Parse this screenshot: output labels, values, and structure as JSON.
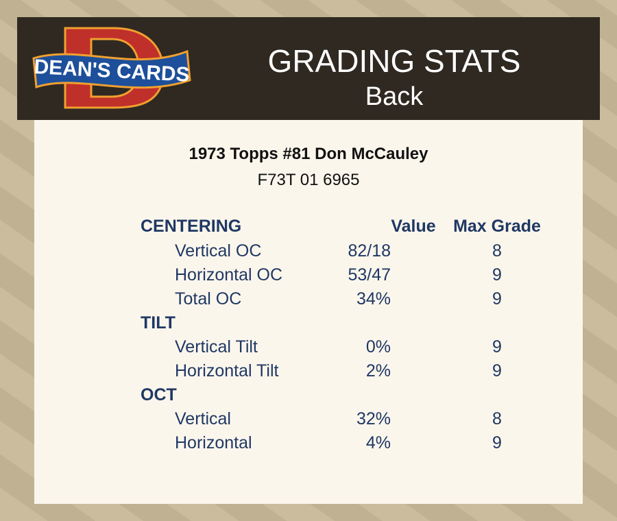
{
  "header": {
    "logo_text": "DEAN'S CARDS",
    "title": "GRADING STATS",
    "subtitle": "Back"
  },
  "card": {
    "title": "1973 Topps #81 Don McCauley",
    "cert": "F73T 01 6965"
  },
  "table": {
    "col_value": "Value",
    "col_max": "Max Grade",
    "sections": [
      {
        "name": "CENTERING",
        "rows": [
          {
            "label": "Vertical OC",
            "value": "82/18",
            "max": "8"
          },
          {
            "label": "Horizontal OC",
            "value": "53/47",
            "max": "9"
          },
          {
            "label": "Total OC",
            "value": "34%",
            "max": "9"
          }
        ]
      },
      {
        "name": "TILT",
        "rows": [
          {
            "label": "Vertical Tilt",
            "value": "0%",
            "max": "9"
          },
          {
            "label": "Horizontal Tilt",
            "value": "2%",
            "max": "9"
          }
        ]
      },
      {
        "name": "OCT",
        "rows": [
          {
            "label": "Vertical",
            "value": "32%",
            "max": "8"
          },
          {
            "label": "Horizontal",
            "value": "4%",
            "max": "9"
          }
        ]
      }
    ]
  },
  "colors": {
    "text": "#1f3864",
    "header_bg": "#2f2921",
    "panel_bg": "#fbf6ec",
    "logo_red": "#c0302a",
    "logo_blue": "#1d4f9a",
    "logo_orange": "#f0a030"
  }
}
